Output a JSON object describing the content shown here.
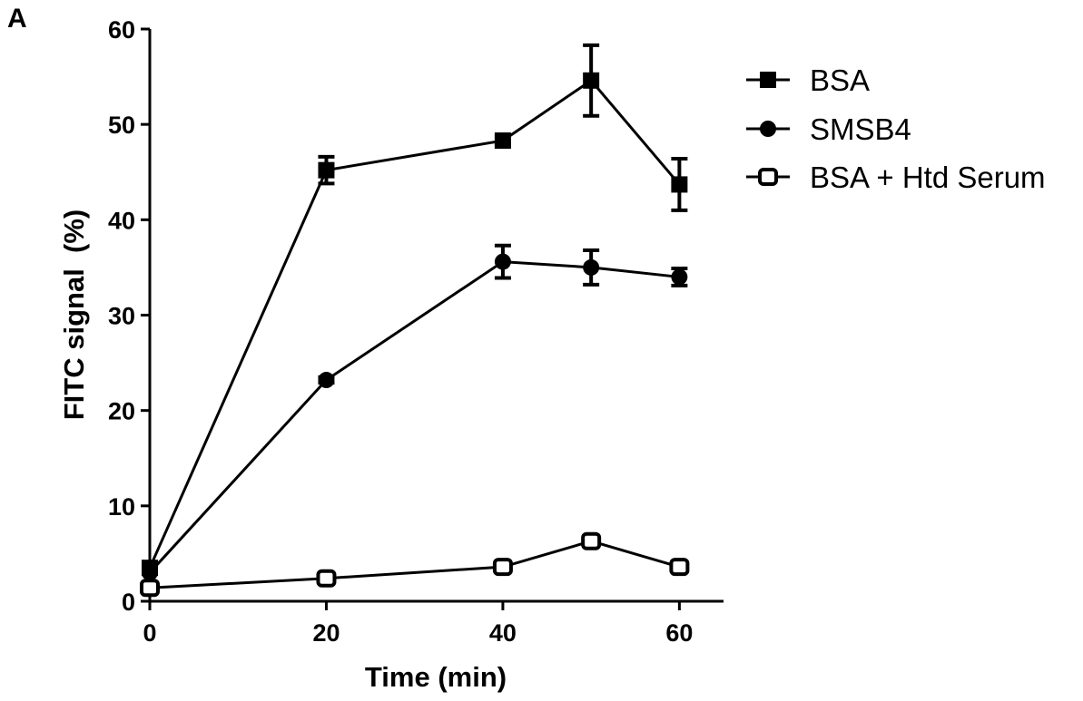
{
  "chart_data": {
    "type": "line",
    "panel_label": "A",
    "xlabel": "Time (min)",
    "ylabel": "FITC signal  (%)",
    "xlim": [
      0,
      65
    ],
    "ylim": [
      0,
      60
    ],
    "x_ticks": [
      0,
      20,
      40,
      60
    ],
    "y_ticks": [
      0,
      10,
      20,
      30,
      40,
      50,
      60
    ],
    "grid": false,
    "legend_position": "right",
    "color": "#000000",
    "series": [
      {
        "name": "BSA",
        "marker": "square-filled",
        "x": [
          0,
          20,
          40,
          50,
          60
        ],
        "y": [
          3.5,
          45.2,
          48.3,
          54.6,
          43.7
        ],
        "error": [
          0,
          1.4,
          0.4,
          3.7,
          2.7
        ]
      },
      {
        "name": "SMSB4",
        "marker": "circle-filled",
        "x": [
          0,
          20,
          40,
          50,
          60
        ],
        "y": [
          3.0,
          23.2,
          35.6,
          35.0,
          34.0
        ],
        "error": [
          0,
          0.3,
          1.7,
          1.8,
          0.9
        ]
      },
      {
        "name": "BSA + Htd Serum",
        "marker": "square-open",
        "x": [
          0,
          20,
          40,
          50,
          60
        ],
        "y": [
          1.4,
          2.4,
          3.6,
          6.3,
          3.6
        ],
        "error": [
          0,
          0,
          0,
          0,
          0
        ]
      }
    ]
  }
}
